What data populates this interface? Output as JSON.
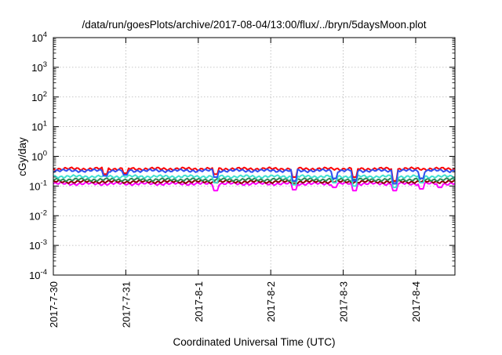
{
  "chart_data": {
    "type": "line",
    "title": "/data/run/goesPlots/archive/2017-08-04/13:00/flux/../bryn/5daysMoon.plot",
    "xlabel": "Coordinated Universal Time (UTC)",
    "ylabel": "cGy/day",
    "yscale": "log",
    "ylim": [
      0.0001,
      10000
    ],
    "xlim": [
      "2017-07-30T00:00",
      "2017-08-04T13:00"
    ],
    "grid": true,
    "x_tick_labels": [
      "2017-7-30",
      "2017-7-31",
      "2017-8-1",
      "2017-8-2",
      "2017-8-3",
      "2017-8-4"
    ],
    "y_ticks": [
      {
        "base": "10",
        "exp": "-4"
      },
      {
        "base": "10",
        "exp": "-3"
      },
      {
        "base": "10",
        "exp": "-2"
      },
      {
        "base": "10",
        "exp": "-1"
      },
      {
        "base": "10",
        "exp": "0"
      },
      {
        "base": "10",
        "exp": "1"
      },
      {
        "base": "10",
        "exp": "2"
      },
      {
        "base": "10",
        "exp": "3"
      },
      {
        "base": "10",
        "exp": "4"
      }
    ],
    "series": [
      {
        "color": "#ff00ff",
        "level": 0.12,
        "dips": [
          [
            "2017-08-01T06:00",
            0.07
          ],
          [
            "2017-08-02T08:00",
            0.075
          ],
          [
            "2017-08-02T21:00",
            0.09
          ],
          [
            "2017-08-03T04:00",
            0.07
          ],
          [
            "2017-08-03T17:00",
            0.07
          ],
          [
            "2017-08-04T02:00",
            0.08
          ],
          [
            "2017-08-04T08:00",
            0.09
          ]
        ]
      },
      {
        "color": "#8b0000",
        "level": 0.14,
        "dips": [
          [
            "2017-08-02T08:00",
            0.12
          ],
          [
            "2017-08-03T17:00",
            0.12
          ]
        ]
      },
      {
        "color": "#2e8b57",
        "level": 0.165,
        "dips": [
          [
            "2017-08-02T08:00",
            0.14
          ],
          [
            "2017-08-03T17:00",
            0.14
          ]
        ]
      },
      {
        "color": "#40e0d0",
        "level": 0.21,
        "dips": [
          [
            "2017-08-01T06:00",
            0.13
          ],
          [
            "2017-08-02T08:00",
            0.11
          ],
          [
            "2017-08-02T21:00",
            0.13
          ],
          [
            "2017-08-03T04:00",
            0.1
          ],
          [
            "2017-08-03T17:00",
            0.09
          ],
          [
            "2017-08-04T02:00",
            0.13
          ]
        ]
      },
      {
        "color": "#ff0000",
        "level": 0.38,
        "dips": [
          [
            "2017-07-30T17:00",
            0.25
          ],
          [
            "2017-07-31T00:00",
            0.27
          ],
          [
            "2017-08-01T06:00",
            0.25
          ],
          [
            "2017-08-02T08:00",
            0.2
          ],
          [
            "2017-08-03T04:00",
            0.2
          ],
          [
            "2017-08-03T17:00",
            0.15
          ]
        ]
      },
      {
        "color": "#3050f0",
        "level": 0.33,
        "dips": [
          [
            "2017-07-30T17:00",
            0.22
          ],
          [
            "2017-07-31T00:00",
            0.24
          ],
          [
            "2017-08-01T06:00",
            0.2
          ],
          [
            "2017-08-02T08:00",
            0.15
          ],
          [
            "2017-08-02T21:00",
            0.18
          ],
          [
            "2017-08-03T04:00",
            0.15
          ],
          [
            "2017-08-03T17:00",
            0.12
          ],
          [
            "2017-08-04T02:00",
            0.18
          ]
        ]
      }
    ]
  }
}
